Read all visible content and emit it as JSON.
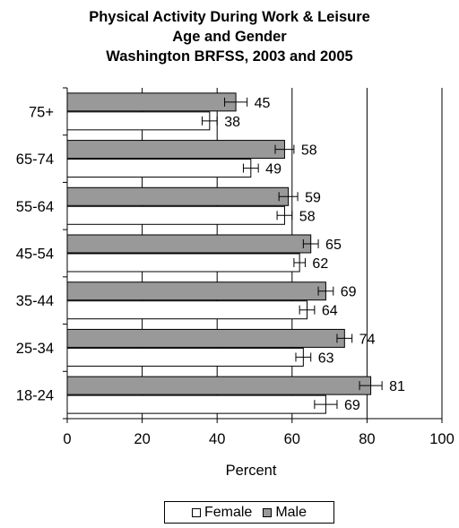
{
  "chart_data": {
    "type": "bar",
    "orientation": "horizontal",
    "title_lines": [
      "Physical Activity During Work & Leisure",
      "Age and Gender",
      "Washington BRFSS, 2003 and 2005"
    ],
    "xlabel": "Percent",
    "ylabel": "",
    "xlim": [
      0,
      100
    ],
    "x_ticks": [
      "0",
      "20",
      "40",
      "60",
      "80",
      "100"
    ],
    "categories": [
      "75+",
      "65-74",
      "55-64",
      "45-54",
      "35-44",
      "25-34",
      "18-24"
    ],
    "series": [
      {
        "name": "Male",
        "color": "#999999",
        "values": [
          45,
          58,
          59,
          65,
          69,
          74,
          81
        ],
        "error_low": [
          42,
          55.5,
          56.5,
          63,
          67,
          72,
          78
        ],
        "error_high": [
          48,
          60.5,
          61.5,
          67,
          71,
          76,
          84
        ]
      },
      {
        "name": "Female",
        "color": "#ffffff",
        "values": [
          38,
          49,
          58,
          62,
          64,
          63,
          69
        ],
        "error_low": [
          36,
          47,
          56,
          60.5,
          62,
          61,
          66
        ],
        "error_high": [
          40,
          51,
          60,
          63.5,
          66,
          65,
          72
        ]
      }
    ],
    "grid": true,
    "error_bars": true,
    "legend": {
      "position": "bottom",
      "entries": [
        "Female",
        "Male"
      ]
    }
  }
}
